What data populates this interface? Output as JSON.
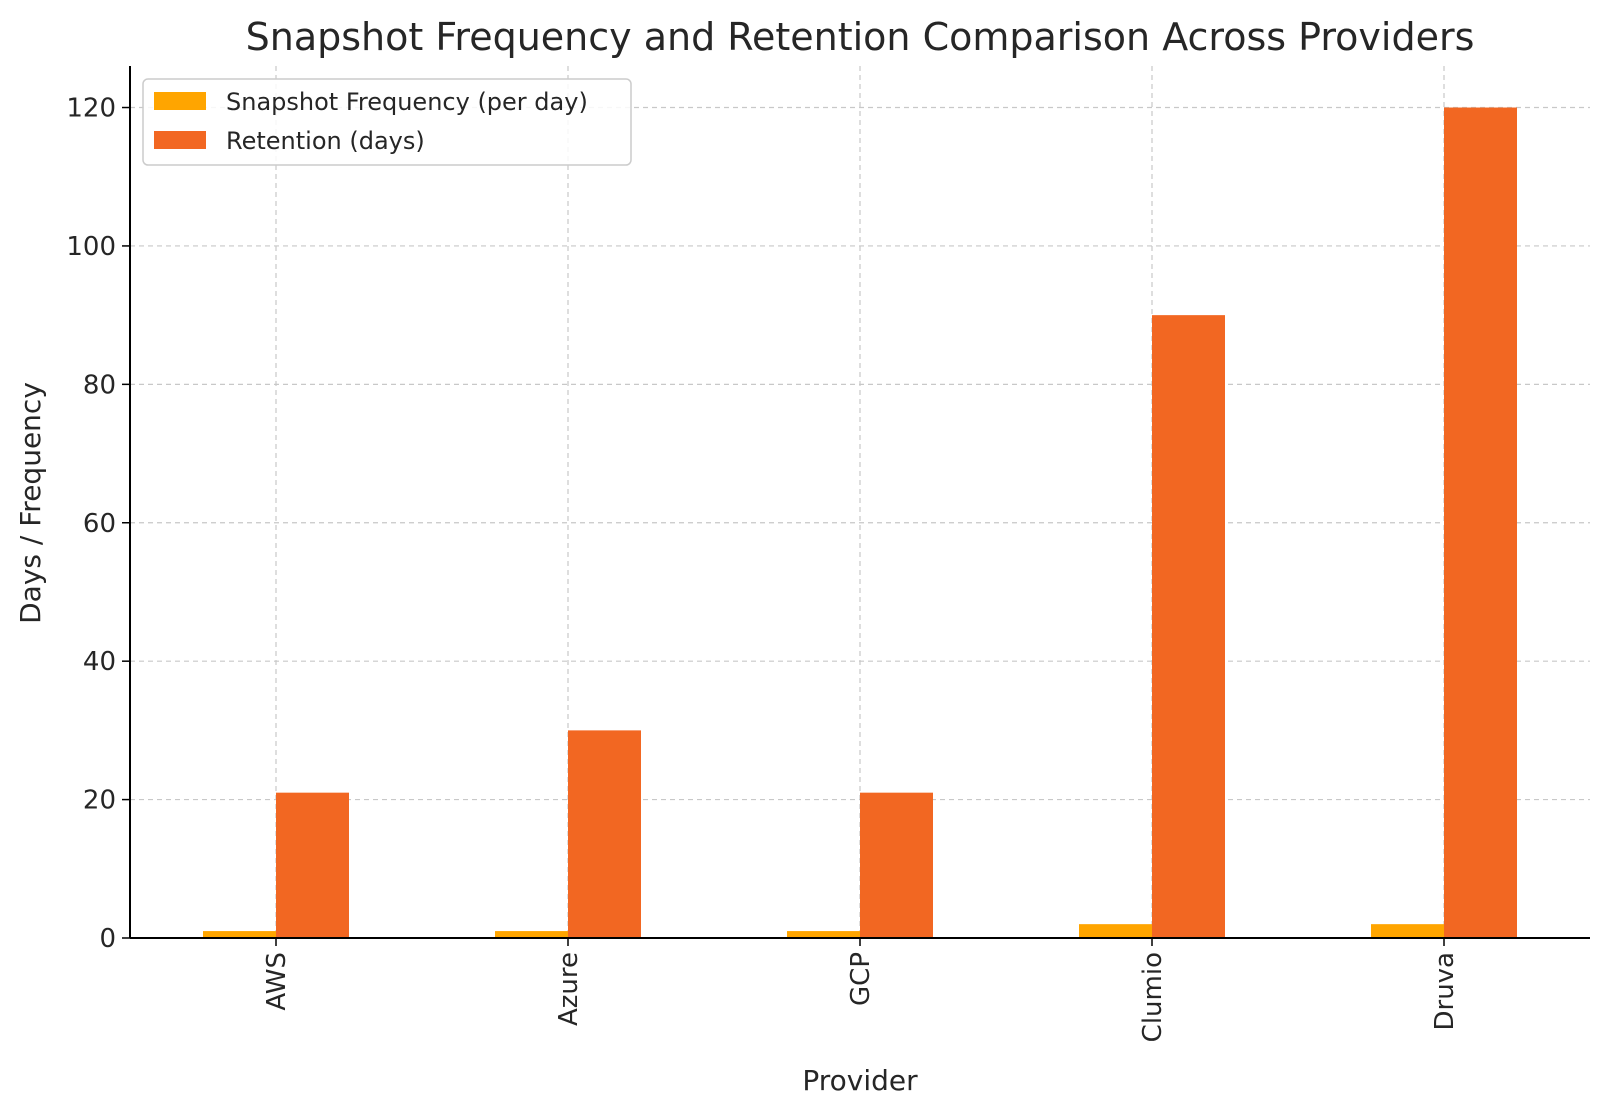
{
  "chart_data": {
    "type": "bar",
    "title": "Snapshot Frequency and Retention Comparison Across Providers",
    "xlabel": "Provider",
    "ylabel": "Days / Frequency",
    "categories": [
      "AWS",
      "Azure",
      "GCP",
      "Clumio",
      "Druva"
    ],
    "series": [
      {
        "name": "Snapshot Frequency (per day)",
        "values": [
          1,
          1,
          1,
          2,
          2
        ],
        "color": "#FFA500"
      },
      {
        "name": "Retention (days)",
        "values": [
          21,
          30,
          21,
          90,
          120
        ],
        "color": "#F26722"
      }
    ],
    "ylim": [
      0,
      126
    ],
    "yticks": [
      0,
      20,
      40,
      60,
      80,
      100,
      120
    ],
    "grid": true,
    "legend_position": "top-left"
  }
}
